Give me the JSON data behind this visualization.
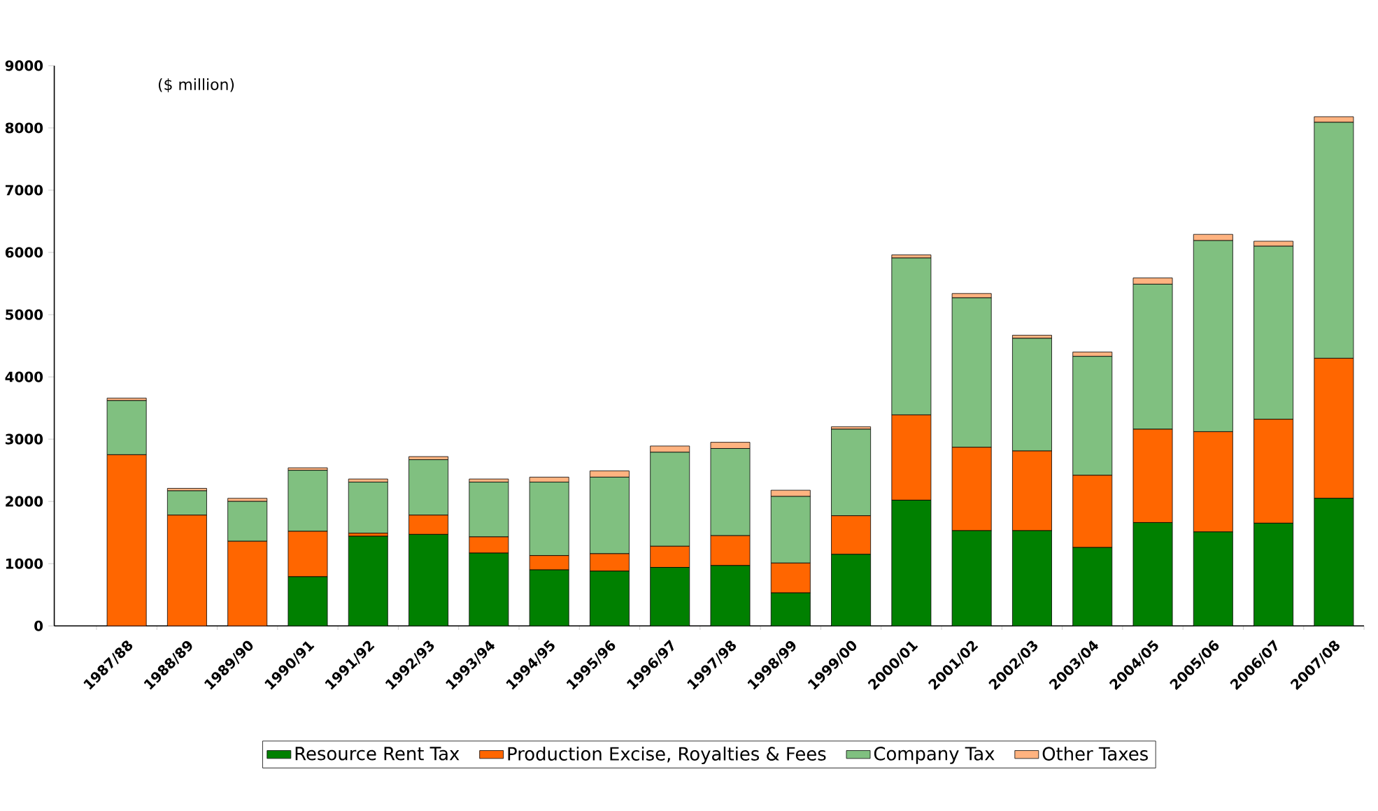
{
  "chart_data": {
    "type": "bar",
    "stacked": true,
    "legend": "bottom",
    "grid": false,
    "annotations": [
      "($ million)"
    ],
    "categories": [
      "1987/88",
      "1988/89",
      "1989/90",
      "1990/91",
      "1991/92",
      "1992/93",
      "1993/94",
      "1994/95",
      "1995/96",
      "1996/97",
      "1997/98",
      "1998/99",
      "1999/00",
      "2000/01",
      "2001/02",
      "2002/03",
      "2003/04",
      "2004/05",
      "2005/06",
      "2006/07",
      "2007/08"
    ],
    "ylim": [
      0,
      9000
    ],
    "yticks": [
      0,
      1000,
      2000,
      3000,
      4000,
      5000,
      6000,
      7000,
      8000,
      9000
    ],
    "series": [
      {
        "name": "Resource Rent Tax",
        "color": "#008000",
        "values": [
          0,
          0,
          0,
          790,
          1440,
          1470,
          1170,
          900,
          880,
          940,
          970,
          530,
          1150,
          2020,
          1530,
          1530,
          1260,
          1660,
          1510,
          1650,
          2050
        ]
      },
      {
        "name": "Production Excise, Royalties & Fees",
        "color": "#ff6600",
        "values": [
          2750,
          1780,
          1360,
          730,
          50,
          310,
          260,
          230,
          280,
          340,
          480,
          480,
          620,
          1370,
          1340,
          1280,
          1160,
          1500,
          1610,
          1670,
          2250
        ]
      },
      {
        "name": "Company Tax",
        "color": "#80c080",
        "values": [
          870,
          390,
          640,
          980,
          820,
          890,
          880,
          1180,
          1230,
          1510,
          1400,
          1070,
          1390,
          2520,
          2400,
          1810,
          1910,
          2330,
          3070,
          2780,
          3790
        ]
      },
      {
        "name": "Other Taxes",
        "color": "#ffb380",
        "values": [
          40,
          40,
          50,
          40,
          50,
          50,
          50,
          80,
          100,
          100,
          100,
          100,
          40,
          50,
          70,
          50,
          70,
          100,
          100,
          80,
          90
        ]
      }
    ]
  }
}
